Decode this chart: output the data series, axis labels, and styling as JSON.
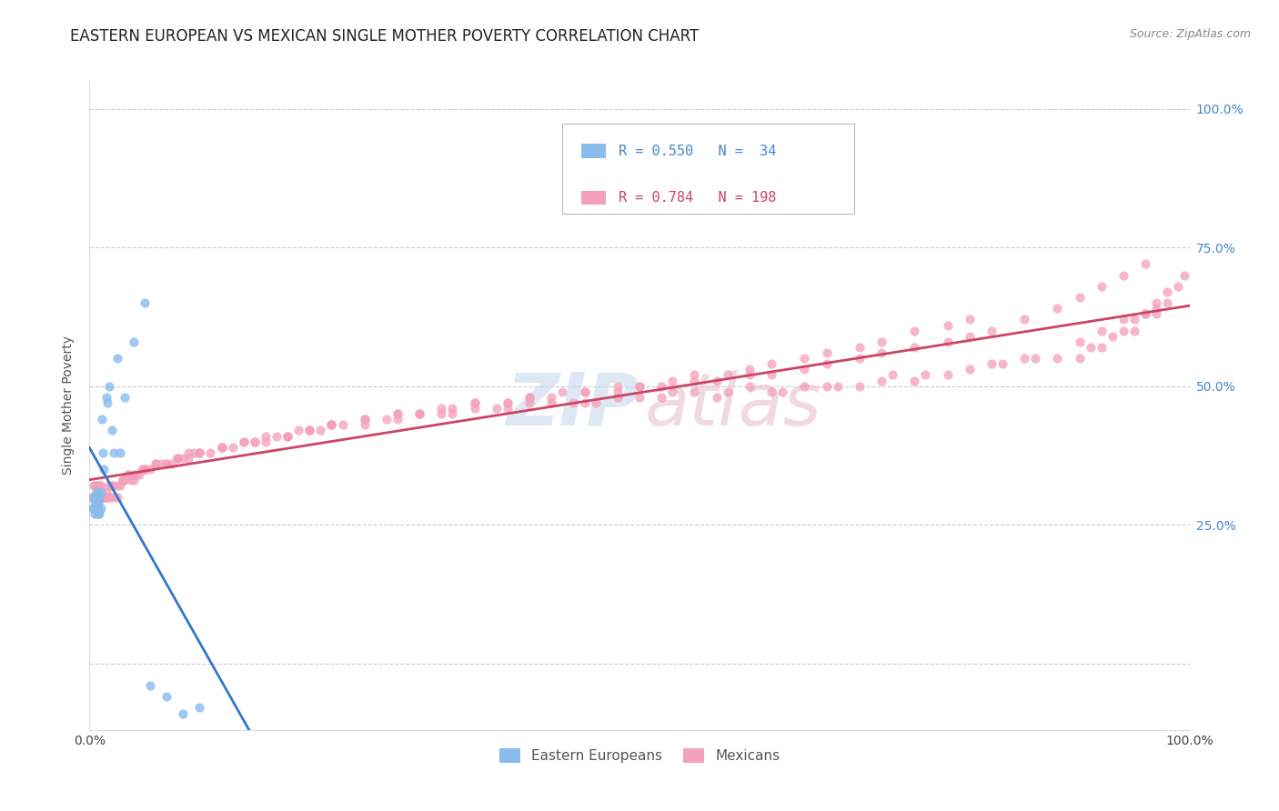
{
  "title": "EASTERN EUROPEAN VS MEXICAN SINGLE MOTHER POVERTY CORRELATION CHART",
  "source": "Source: ZipAtlas.com",
  "ylabel": "Single Mother Poverty",
  "legend_label1": "Eastern Europeans",
  "legend_label2": "Mexicans",
  "R1": 0.55,
  "N1": 34,
  "R2": 0.784,
  "N2": 198,
  "color_ee": "#88bbee",
  "color_mex": "#f4a0b8",
  "trendline_ee": "#3377cc",
  "trendline_mex": "#cc4466",
  "background": "#ffffff",
  "grid_color": "#cccccc",
  "xlim": [
    0.0,
    1.0
  ],
  "ylim": [
    -0.12,
    1.05
  ],
  "right_yticks": [
    0.0,
    0.25,
    0.5,
    0.75,
    1.0
  ],
  "right_yticklabels": [
    "",
    "25.0%",
    "50.0%",
    "75.0%",
    "100.0%"
  ],
  "ee_x": [
    0.003,
    0.004,
    0.004,
    0.005,
    0.005,
    0.005,
    0.006,
    0.006,
    0.007,
    0.007,
    0.007,
    0.008,
    0.008,
    0.009,
    0.009,
    0.01,
    0.01,
    0.011,
    0.012,
    0.013,
    0.015,
    0.016,
    0.018,
    0.02,
    0.022,
    0.025,
    0.028,
    0.032,
    0.04,
    0.05,
    0.055,
    0.07,
    0.085,
    0.1
  ],
  "ee_y": [
    0.28,
    0.3,
    0.28,
    0.29,
    0.3,
    0.27,
    0.31,
    0.28,
    0.3,
    0.28,
    0.27,
    0.29,
    0.27,
    0.3,
    0.27,
    0.31,
    0.28,
    0.44,
    0.38,
    0.35,
    0.48,
    0.47,
    0.5,
    0.42,
    0.38,
    0.55,
    0.38,
    0.48,
    0.58,
    0.65,
    -0.04,
    -0.06,
    -0.09,
    -0.08
  ],
  "mex_x": [
    0.002,
    0.003,
    0.004,
    0.004,
    0.005,
    0.005,
    0.006,
    0.006,
    0.007,
    0.007,
    0.008,
    0.008,
    0.009,
    0.009,
    0.01,
    0.01,
    0.011,
    0.012,
    0.013,
    0.014,
    0.015,
    0.016,
    0.018,
    0.019,
    0.02,
    0.022,
    0.025,
    0.028,
    0.03,
    0.032,
    0.035,
    0.038,
    0.04,
    0.042,
    0.045,
    0.048,
    0.05,
    0.055,
    0.06,
    0.065,
    0.07,
    0.075,
    0.08,
    0.085,
    0.09,
    0.095,
    0.1,
    0.11,
    0.12,
    0.13,
    0.14,
    0.15,
    0.16,
    0.17,
    0.18,
    0.19,
    0.2,
    0.21,
    0.22,
    0.23,
    0.25,
    0.27,
    0.28,
    0.3,
    0.32,
    0.33,
    0.35,
    0.37,
    0.38,
    0.4,
    0.42,
    0.44,
    0.45,
    0.46,
    0.48,
    0.5,
    0.52,
    0.53,
    0.55,
    0.57,
    0.58,
    0.6,
    0.62,
    0.63,
    0.65,
    0.67,
    0.68,
    0.7,
    0.72,
    0.73,
    0.75,
    0.76,
    0.78,
    0.8,
    0.82,
    0.83,
    0.85,
    0.86,
    0.88,
    0.9,
    0.9,
    0.91,
    0.92,
    0.92,
    0.93,
    0.94,
    0.94,
    0.95,
    0.95,
    0.96,
    0.96,
    0.97,
    0.97,
    0.97,
    0.98,
    0.98,
    0.99,
    0.995,
    0.01,
    0.015,
    0.02,
    0.025,
    0.03,
    0.035,
    0.04,
    0.05,
    0.06,
    0.07,
    0.08,
    0.09,
    0.1,
    0.12,
    0.14,
    0.16,
    0.18,
    0.2,
    0.22,
    0.25,
    0.28,
    0.3,
    0.32,
    0.35,
    0.38,
    0.4,
    0.43,
    0.45,
    0.48,
    0.5,
    0.53,
    0.55,
    0.58,
    0.6,
    0.62,
    0.65,
    0.67,
    0.7,
    0.72,
    0.75,
    0.78,
    0.8,
    0.05,
    0.08,
    0.1,
    0.12,
    0.15,
    0.18,
    0.2,
    0.22,
    0.25,
    0.28,
    0.3,
    0.33,
    0.35,
    0.38,
    0.4,
    0.42,
    0.45,
    0.48,
    0.5,
    0.52,
    0.55,
    0.57,
    0.6,
    0.62,
    0.65,
    0.67,
    0.7,
    0.72,
    0.75,
    0.78,
    0.8,
    0.82,
    0.85,
    0.88,
    0.9,
    0.92,
    0.94,
    0.96
  ],
  "mex_y": [
    0.3,
    0.3,
    0.3,
    0.32,
    0.3,
    0.32,
    0.3,
    0.32,
    0.3,
    0.31,
    0.29,
    0.32,
    0.3,
    0.32,
    0.3,
    0.32,
    0.3,
    0.3,
    0.3,
    0.3,
    0.31,
    0.3,
    0.32,
    0.3,
    0.32,
    0.3,
    0.32,
    0.32,
    0.33,
    0.33,
    0.34,
    0.33,
    0.34,
    0.34,
    0.34,
    0.35,
    0.35,
    0.35,
    0.36,
    0.36,
    0.36,
    0.36,
    0.37,
    0.37,
    0.37,
    0.38,
    0.38,
    0.38,
    0.39,
    0.39,
    0.4,
    0.4,
    0.4,
    0.41,
    0.41,
    0.42,
    0.42,
    0.42,
    0.43,
    0.43,
    0.43,
    0.44,
    0.44,
    0.45,
    0.45,
    0.45,
    0.46,
    0.46,
    0.46,
    0.47,
    0.47,
    0.47,
    0.47,
    0.47,
    0.48,
    0.48,
    0.48,
    0.49,
    0.49,
    0.48,
    0.49,
    0.5,
    0.49,
    0.49,
    0.5,
    0.5,
    0.5,
    0.5,
    0.51,
    0.52,
    0.51,
    0.52,
    0.52,
    0.53,
    0.54,
    0.54,
    0.55,
    0.55,
    0.55,
    0.55,
    0.58,
    0.57,
    0.57,
    0.6,
    0.59,
    0.6,
    0.62,
    0.6,
    0.62,
    0.63,
    0.63,
    0.63,
    0.65,
    0.64,
    0.65,
    0.67,
    0.68,
    0.7,
    0.3,
    0.3,
    0.32,
    0.3,
    0.33,
    0.34,
    0.33,
    0.35,
    0.36,
    0.36,
    0.37,
    0.38,
    0.38,
    0.39,
    0.4,
    0.41,
    0.41,
    0.42,
    0.43,
    0.44,
    0.45,
    0.45,
    0.46,
    0.47,
    0.47,
    0.48,
    0.49,
    0.49,
    0.5,
    0.5,
    0.51,
    0.52,
    0.52,
    0.53,
    0.54,
    0.55,
    0.56,
    0.57,
    0.58,
    0.6,
    0.61,
    0.62,
    0.35,
    0.37,
    0.38,
    0.39,
    0.4,
    0.41,
    0.42,
    0.43,
    0.44,
    0.45,
    0.45,
    0.46,
    0.47,
    0.47,
    0.48,
    0.48,
    0.49,
    0.49,
    0.5,
    0.5,
    0.51,
    0.51,
    0.52,
    0.52,
    0.53,
    0.54,
    0.55,
    0.56,
    0.57,
    0.58,
    0.59,
    0.6,
    0.62,
    0.64,
    0.66,
    0.68,
    0.7,
    0.72
  ],
  "title_fontsize": 12,
  "axis_label_fontsize": 10,
  "tick_fontsize": 10,
  "legend_fontsize": 11,
  "source_fontsize": 9,
  "watermark_zip_color": "#c8d8ee",
  "watermark_atlas_color": "#e8c0cc"
}
